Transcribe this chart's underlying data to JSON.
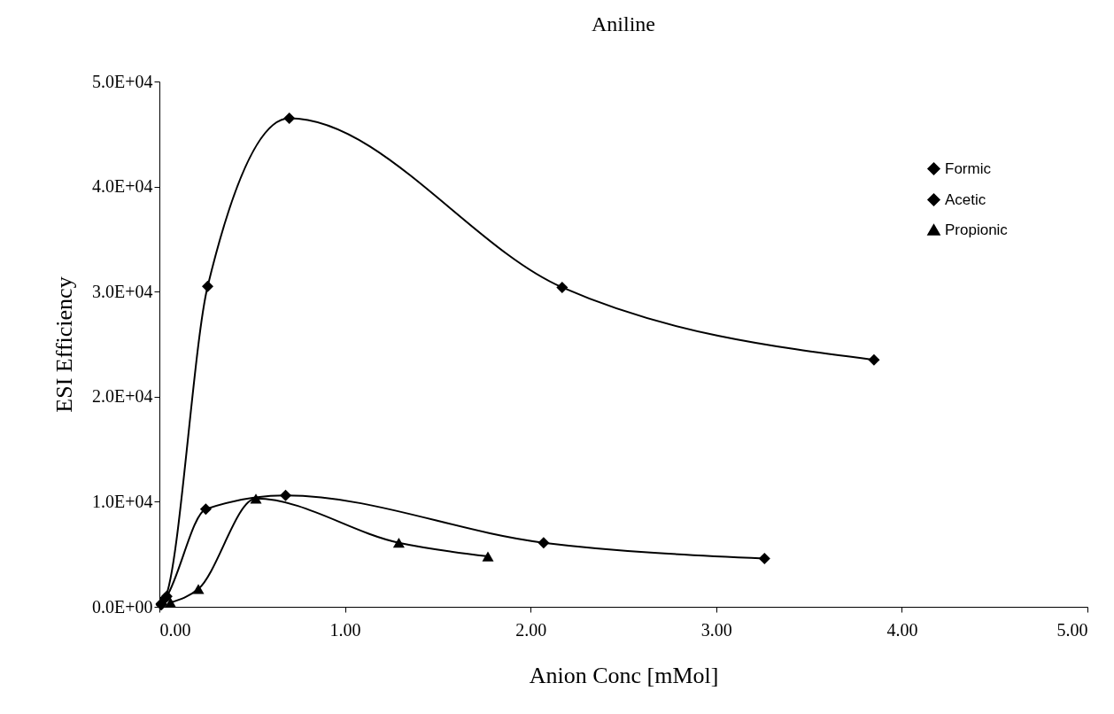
{
  "chart_data": {
    "type": "line",
    "title": "Aniline",
    "xlabel": "Anion Conc [mMol]",
    "ylabel": "ESI Efficiency",
    "xlim": [
      0,
      5
    ],
    "xticks": [
      {
        "value": 0,
        "label": "0.00"
      },
      {
        "value": 1,
        "label": "1.00"
      },
      {
        "value": 2,
        "label": "2.00"
      },
      {
        "value": 3,
        "label": "3.00"
      },
      {
        "value": 4,
        "label": "4.00"
      },
      {
        "value": 5,
        "label": "5.00"
      }
    ],
    "ylim": [
      0,
      50000
    ],
    "yticks": [
      {
        "value": 0,
        "label": "0.0E+00"
      },
      {
        "value": 10000,
        "label": "1.0E+04"
      },
      {
        "value": 20000,
        "label": "2.0E+04"
      },
      {
        "value": 30000,
        "label": "3.0E+04"
      },
      {
        "value": 40000,
        "label": "4.0E+04"
      },
      {
        "value": 50000,
        "label": "5.0E+04"
      }
    ],
    "grid": false,
    "legend": "top right",
    "line_style": "solid",
    "series": [
      {
        "name": "Formic",
        "color": "#000000",
        "marker": "diamond",
        "x": [
          0.01,
          0.03,
          0.26,
          0.7,
          2.17,
          3.85
        ],
        "values": [
          300,
          800,
          30500,
          46500,
          30400,
          23500
        ]
      },
      {
        "name": "Acetic",
        "color": "#000000",
        "marker": "diamond",
        "x": [
          0.01,
          0.04,
          0.25,
          0.68,
          2.07,
          3.26
        ],
        "values": [
          200,
          1000,
          9300,
          10600,
          6100,
          4600
        ]
      },
      {
        "name": "Propionic",
        "color": "#000000",
        "marker": "triangle",
        "x": [
          0.06,
          0.21,
          0.52,
          1.29,
          1.77
        ],
        "values": [
          400,
          1700,
          10300,
          6100,
          4800
        ]
      }
    ]
  }
}
